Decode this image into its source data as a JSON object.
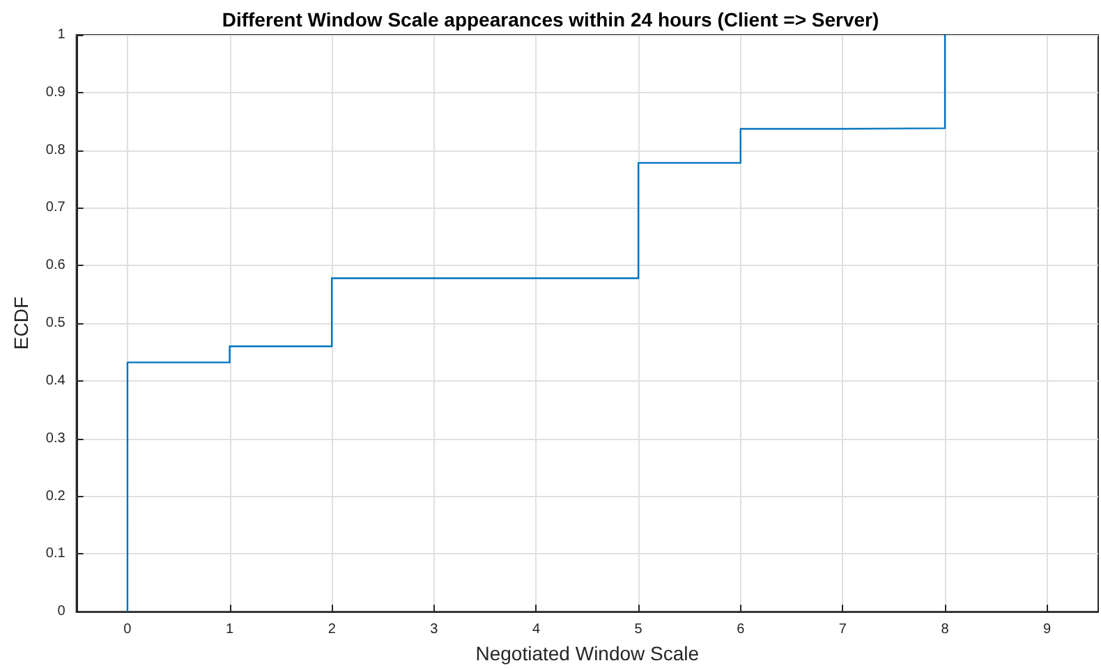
{
  "chart_data": {
    "type": "step",
    "title": "Different Window Scale appearances within 24 hours (Client => Server)",
    "xlabel": "Negotiated Window Scale",
    "ylabel": "ECDF",
    "x": [
      0,
      0,
      1,
      2,
      5,
      6,
      7,
      8
    ],
    "series": [
      {
        "color": "#0072bd",
        "values": [
          0,
          0.432,
          0.46,
          0.578,
          0.778,
          0.837,
          0.838,
          1
        ]
      }
    ],
    "xlim": [
      -0.5,
      9.5
    ],
    "xticks": [
      0,
      1,
      2,
      3,
      4,
      5,
      6,
      7,
      8,
      9
    ],
    "ylim": [
      0,
      1
    ],
    "yticks": [
      0,
      0.1,
      0.2,
      0.3,
      0.4,
      0.5,
      0.6,
      0.7,
      0.8,
      0.9,
      1
    ],
    "grid": true,
    "marker": "none",
    "line_style": "solid"
  }
}
